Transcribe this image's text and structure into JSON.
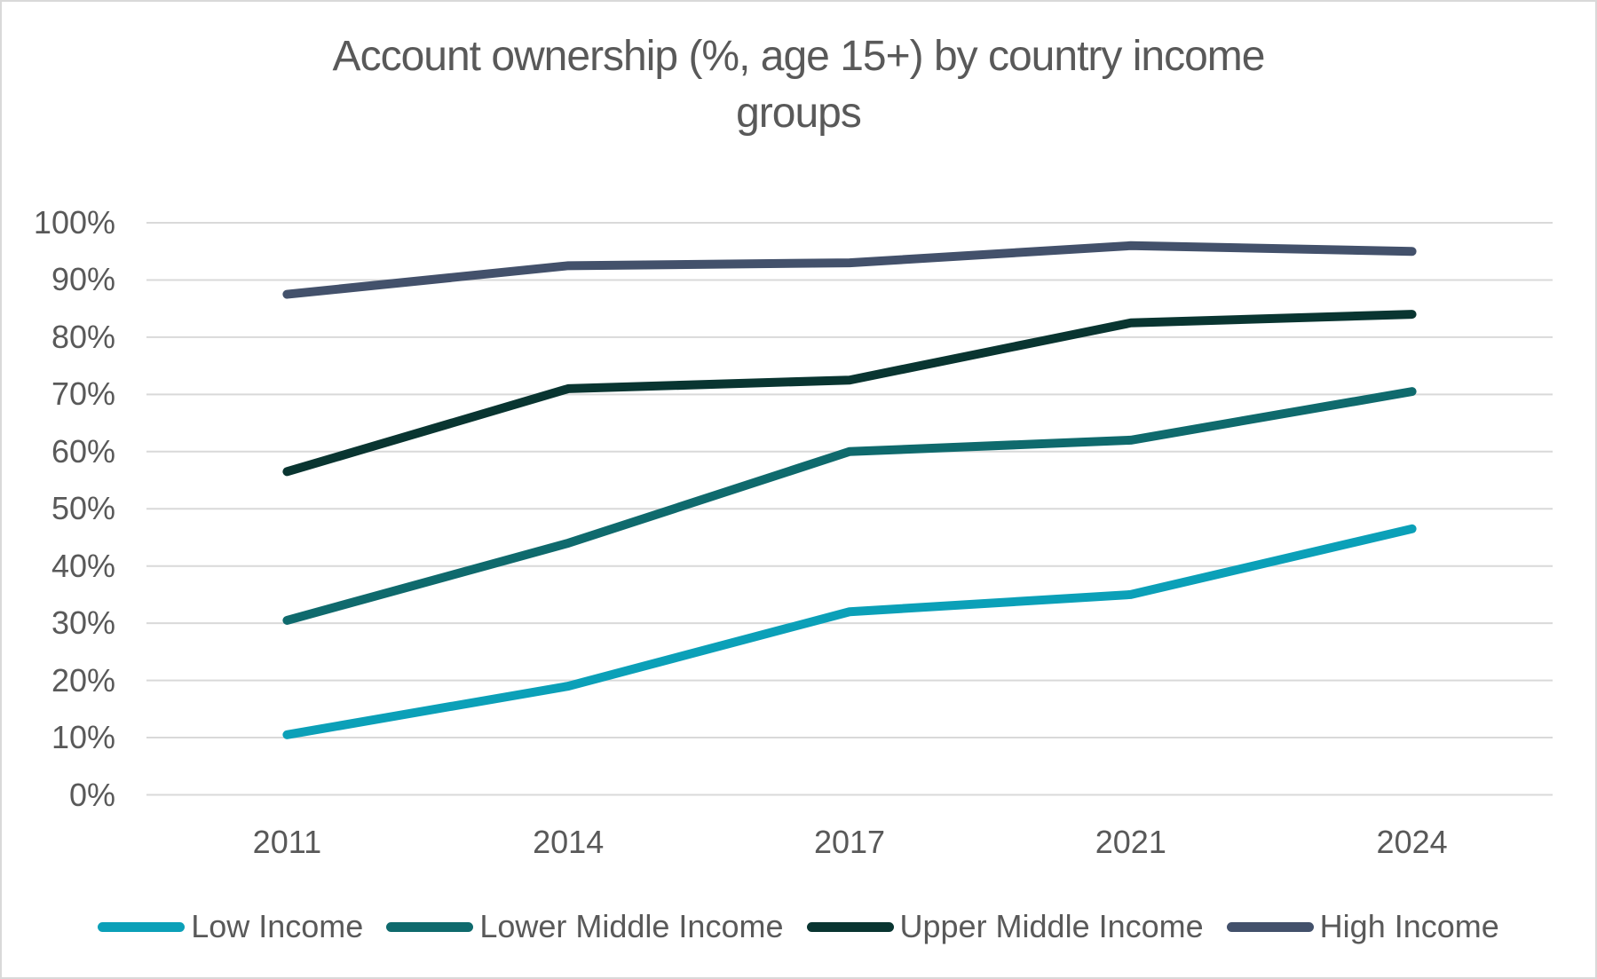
{
  "title": "Account ownership (%, age 15+) by country income groups",
  "colors": {
    "text": "#595959",
    "grid": "#D9D9D9",
    "border": "#D9D9D9",
    "background": "#FFFFFF"
  },
  "chart_data": {
    "type": "line",
    "title": "Account ownership (%, age 15+) by country income groups",
    "categories": [
      "2011",
      "2014",
      "2017",
      "2021",
      "2024"
    ],
    "series": [
      {
        "name": "Low Income",
        "color": "#0BA0B8",
        "values": [
          10.5,
          19,
          32,
          35,
          46.5
        ]
      },
      {
        "name": "Lower Middle Income",
        "color": "#0F6A6D",
        "values": [
          30.5,
          44,
          60,
          62,
          70.5
        ]
      },
      {
        "name": "Upper Middle Income",
        "color": "#093531",
        "values": [
          56.5,
          71,
          72.5,
          82.5,
          84
        ]
      },
      {
        "name": "High Income",
        "color": "#43516B",
        "values": [
          87.5,
          92.5,
          93,
          96,
          95
        ]
      }
    ],
    "ylim": [
      0,
      100
    ],
    "ytick_step": 10,
    "ytick_labels": [
      "0%",
      "10%",
      "20%",
      "30%",
      "40%",
      "50%",
      "60%",
      "70%",
      "80%",
      "90%",
      "100%"
    ],
    "xlabel": "",
    "ylabel": "",
    "grid": true,
    "legend_position": "bottom"
  }
}
